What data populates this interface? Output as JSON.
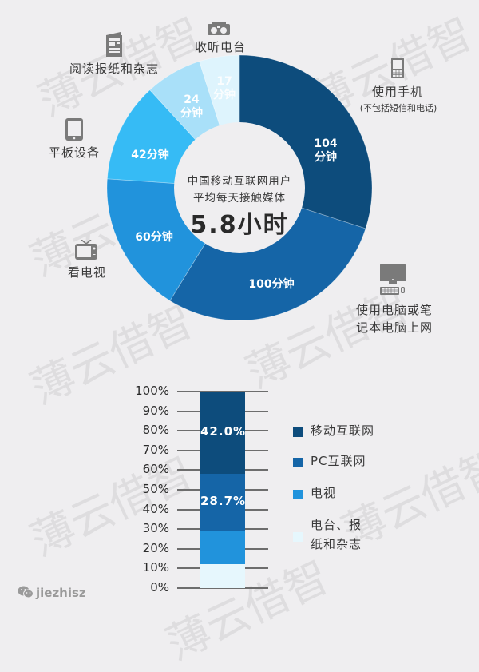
{
  "watermark": "薄云借智",
  "donut": {
    "center_text_line1": "中国移动互联网用户",
    "center_text_line2": "平均每天接触媒体",
    "center_value": "5.8小时",
    "segments": [
      {
        "key": "mobile",
        "value": 104,
        "label_line1": "104",
        "label_line2": "分钟",
        "color": "#0d4c7c",
        "category": "使用手机",
        "category_note": "(不包括短信和电话)",
        "icon": "mobile-phone-icon"
      },
      {
        "key": "pc",
        "value": 100,
        "label_line1": "100分钟",
        "label_line2": "",
        "color": "#1565a7",
        "category_line1": "使用电脑或笔",
        "category_line2": "记本电脑上网",
        "icon": "desktop-computer-icon"
      },
      {
        "key": "tv",
        "value": 60,
        "label_line1": "60分钟",
        "label_line2": "",
        "color": "#2193dc",
        "category": "看电视",
        "icon": "television-icon"
      },
      {
        "key": "tablet",
        "value": 42,
        "label_line1": "42分钟",
        "label_line2": "",
        "color": "#36bbf5",
        "category": "平板设备",
        "icon": "tablet-icon"
      },
      {
        "key": "print",
        "value": 24,
        "label_line1": "24",
        "label_line2": "分钟",
        "color": "#a9e0f9",
        "category": "阅读报纸和杂志",
        "icon": "newspaper-icon"
      },
      {
        "key": "radio",
        "value": 17,
        "label_line1": "17",
        "label_line2": "分钟",
        "color": "#def4fd",
        "category": "收听电台",
        "icon": "radio-icon"
      }
    ]
  },
  "stacked_bar": {
    "ticks": [
      "100%",
      "90%",
      "80%",
      "70%",
      "60%",
      "50%",
      "40%",
      "30%",
      "20%",
      "10%",
      "0%"
    ],
    "segments": [
      {
        "name": "移动互联网",
        "value": 42.0,
        "label": "42.0%",
        "color": "#0d4c7c"
      },
      {
        "name": "PC互联网",
        "value": 28.7,
        "label": "28.7%",
        "color": "#1565a7"
      },
      {
        "name": "电视",
        "value": 17.2,
        "label": "",
        "color": "#2193dc"
      },
      {
        "name": "电台、报纸和杂志",
        "value": 12.1,
        "label": "",
        "color": "#e6f7fd"
      }
    ],
    "legend": [
      {
        "line1": "移动互联网",
        "line2": "",
        "color": "#0d4c7c"
      },
      {
        "line1": "PC互联网",
        "line2": "",
        "color": "#1565a7"
      },
      {
        "line1": "电视",
        "line2": "",
        "color": "#2193dc"
      },
      {
        "line1": "电台、报",
        "line2": "纸和杂志",
        "color": "#e6f7fd"
      }
    ]
  },
  "footer": {
    "icon": "wechat-icon",
    "account": "jiezhisz"
  },
  "chart_data": [
    {
      "type": "pie",
      "subtype": "donut",
      "title": "中国移动互联网用户平均每天接触媒体 5.8小时",
      "unit": "分钟",
      "categories": [
        "使用手机(不包括短信和电话)",
        "使用电脑或笔记本电脑上网",
        "看电视",
        "平板设备",
        "阅读报纸和杂志",
        "收听电台"
      ],
      "values": [
        104,
        100,
        60,
        42,
        24,
        17
      ],
      "colors": [
        "#0d4c7c",
        "#1565a7",
        "#2193dc",
        "#36bbf5",
        "#a9e0f9",
        "#def4fd"
      ]
    },
    {
      "type": "bar",
      "subtype": "stacked-100",
      "categories": [
        ""
      ],
      "series": [
        {
          "name": "移动互联网",
          "values": [
            42.0
          ]
        },
        {
          "name": "PC互联网",
          "values": [
            28.7
          ]
        },
        {
          "name": "电视",
          "values": [
            17.2
          ]
        },
        {
          "name": "电台、报纸和杂志",
          "values": [
            12.1
          ]
        }
      ],
      "ylabel": "",
      "xlabel": "",
      "ylim": [
        0,
        100
      ],
      "yticks": [
        "0%",
        "10%",
        "20%",
        "30%",
        "40%",
        "50%",
        "60%",
        "70%",
        "80%",
        "90%",
        "100%"
      ],
      "grid": true,
      "legend_position": "right"
    }
  ]
}
